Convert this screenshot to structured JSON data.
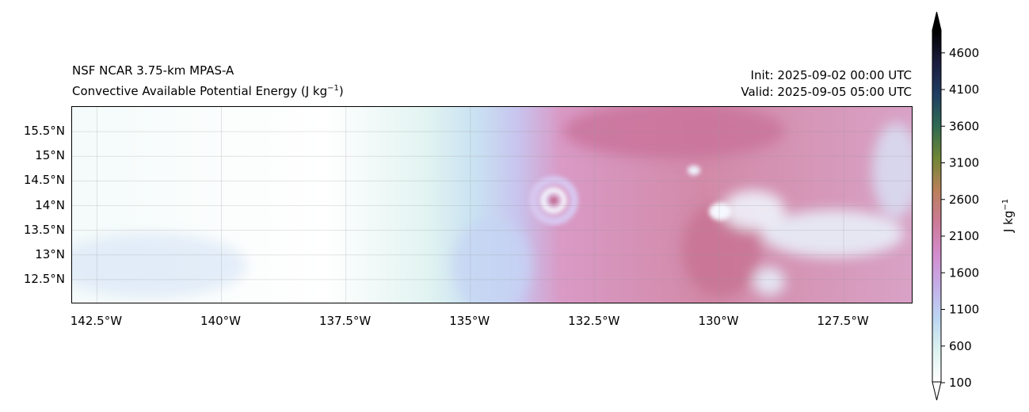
{
  "header": {
    "title_left_1": "NSF NCAR 3.75-km MPAS-A",
    "title_left_2": "Convective Available Potential Energy (J kg",
    "title_left_2_sup": "−1",
    "title_left_2_end": ")",
    "init": "Init: 2025-09-02 00:00 UTC",
    "valid": "Valid: 2025-09-05 05:00 UTC"
  },
  "chart_data": {
    "type": "heatmap",
    "title": "Convective Available Potential Energy (J kg−1)",
    "xlim": [
      -143,
      -126.1
    ],
    "ylim": [
      12.0,
      16.0
    ],
    "x_ticks": [
      {
        "value": -142.5,
        "label": "142.5°W"
      },
      {
        "value": -140,
        "label": "140°W"
      },
      {
        "value": -137.5,
        "label": "137.5°W"
      },
      {
        "value": -135,
        "label": "135°W"
      },
      {
        "value": -132.5,
        "label": "132.5°W"
      },
      {
        "value": -130,
        "label": "130°W"
      },
      {
        "value": -127.5,
        "label": "127.5°W"
      }
    ],
    "y_ticks": [
      {
        "value": 15.5,
        "label": "15.5°N"
      },
      {
        "value": 15,
        "label": "15°N"
      },
      {
        "value": 14.5,
        "label": "14.5°N"
      },
      {
        "value": 14,
        "label": "14°N"
      },
      {
        "value": 13.5,
        "label": "13.5°N"
      },
      {
        "value": 13,
        "label": "13°N"
      },
      {
        "value": 12.5,
        "label": "12.5°N"
      }
    ],
    "grid": true,
    "colorbar": {
      "label": "J kg",
      "label_sup": "−1",
      "range": [
        100,
        4900
      ],
      "extend": "both",
      "ticks": [
        "100",
        "600",
        "1100",
        "1600",
        "2100",
        "2600",
        "3100",
        "3600",
        "4100",
        "4600"
      ],
      "colors": [
        "#ffffff",
        "#dcf2ef",
        "#bcd6f2",
        "#c4aee8",
        "#d38ccc",
        "#cc7a97",
        "#b9805a",
        "#6f8634",
        "#2f6a52",
        "#1f3d62",
        "#1b1c3c",
        "#000000"
      ]
    }
  }
}
